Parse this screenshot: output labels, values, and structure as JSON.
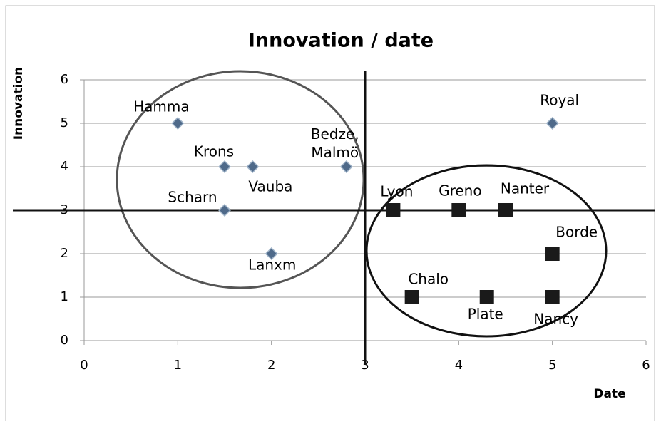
{
  "chart_data": {
    "type": "scatter",
    "title": "Innovation / date",
    "x_label": "Date",
    "y_label": "Innovation",
    "xlim": [
      0,
      6
    ],
    "ylim": [
      0,
      6
    ],
    "xticks": [
      0,
      1,
      2,
      3,
      4,
      5,
      6
    ],
    "yticks": [
      0,
      1,
      2,
      3,
      4,
      5,
      6
    ],
    "grid": true,
    "reference_lines": {
      "x": 3,
      "y": 3
    },
    "series": [
      {
        "marker": "diamond",
        "color": "#4f6a8a",
        "x": [
          1,
          1.5,
          1.8,
          1.5,
          2,
          2.8,
          5
        ],
        "values": [
          5,
          4,
          4,
          3,
          2,
          4,
          5
        ],
        "labels": [
          "Hamma",
          "Krons",
          "Vauba",
          "Scharn",
          "Lanxm",
          "Bedze, Malmö",
          "Royal"
        ]
      },
      {
        "marker": "square",
        "color": "#1a1a1a",
        "x": [
          3.3,
          4,
          4.5,
          5,
          3.5,
          4.3,
          5
        ],
        "values": [
          3,
          3,
          3,
          2,
          1,
          1,
          1
        ],
        "labels": [
          "Lyon",
          "Greno",
          "Nanter",
          "Borde",
          "Chalo",
          "Plate",
          "Nancy"
        ]
      }
    ]
  }
}
